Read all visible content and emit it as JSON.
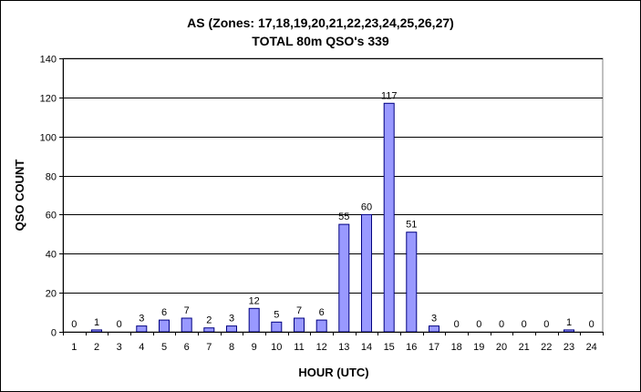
{
  "chart_data": {
    "type": "bar",
    "title": "AS (Zones: 17,18,19,20,21,22,23,24,25,26,27)",
    "subtitle": "TOTAL 80m QSO's 339",
    "xlabel": "HOUR (UTC)",
    "ylabel": "QSO COUNT",
    "ylim": [
      0,
      140
    ],
    "yticks": [
      0,
      20,
      40,
      60,
      80,
      100,
      120,
      140
    ],
    "grid": true,
    "legend": "none",
    "categories": [
      "1",
      "2",
      "3",
      "4",
      "5",
      "6",
      "7",
      "8",
      "9",
      "10",
      "11",
      "12",
      "13",
      "14",
      "15",
      "16",
      "17",
      "18",
      "19",
      "20",
      "21",
      "22",
      "23",
      "24"
    ],
    "values": [
      0,
      1,
      0,
      3,
      6,
      7,
      2,
      3,
      12,
      5,
      7,
      6,
      55,
      60,
      117,
      51,
      3,
      0,
      0,
      0,
      0,
      0,
      1,
      0
    ],
    "bar_color": "#9999ff",
    "bar_edge_color": "#000080"
  }
}
